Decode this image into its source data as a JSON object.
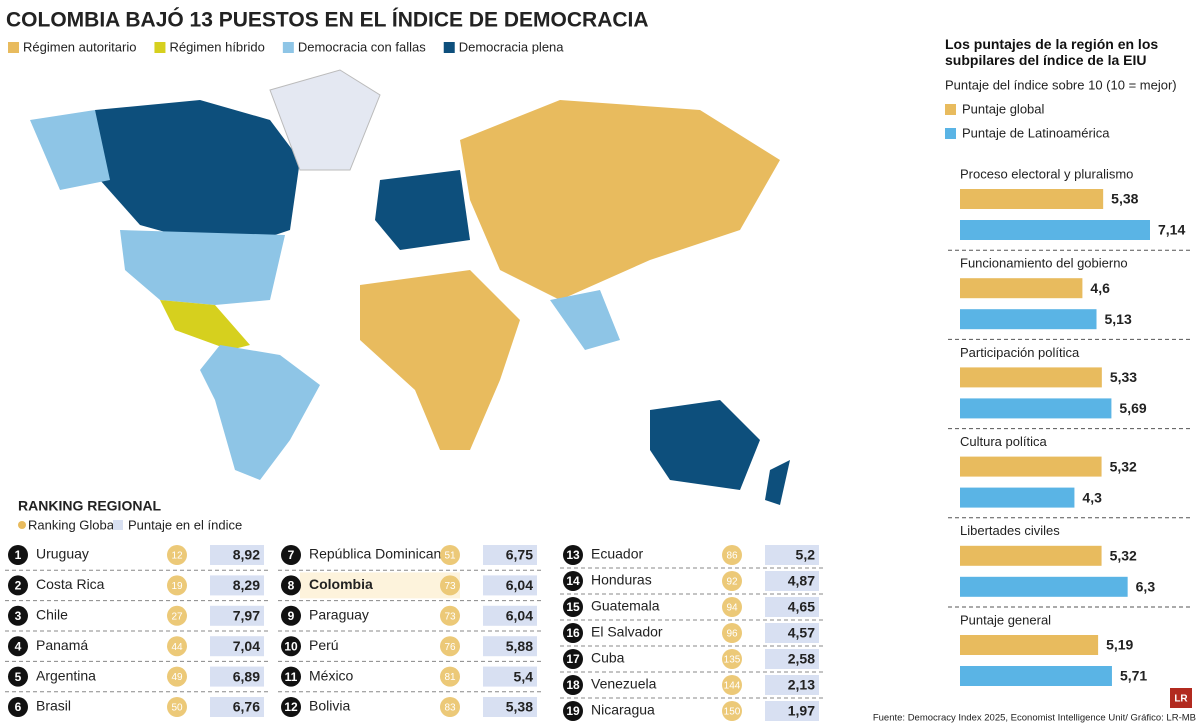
{
  "title": "COLOMBIA BAJÓ 13 PUESTOS EN EL ÍNDICE DE DEMOCRACIA",
  "map_legend": [
    {
      "label": "Régimen autoritario",
      "color": "#e8bb5e"
    },
    {
      "label": "Régimen híbrido",
      "color": "#d6d01e"
    },
    {
      "label": "Democracia con fallas",
      "color": "#8ec5e6"
    },
    {
      "label": "Democracia plena",
      "color": "#0d4f7c"
    }
  ],
  "ranking": {
    "title": "RANKING REGIONAL",
    "legend": [
      "Ranking Global",
      "Puntaje en el índice"
    ],
    "rows": [
      {
        "rank": "1",
        "country": "Uruguay",
        "global": "12",
        "score": "8,92"
      },
      {
        "rank": "2",
        "country": "Costa Rica",
        "global": "19",
        "score": "8,29"
      },
      {
        "rank": "3",
        "country": "Chile",
        "global": "27",
        "score": "7,97"
      },
      {
        "rank": "4",
        "country": "Panamá",
        "global": "44",
        "score": "7,04"
      },
      {
        "rank": "5",
        "country": "Argentina",
        "global": "49",
        "score": "6,89"
      },
      {
        "rank": "6",
        "country": "Brasil",
        "global": "50",
        "score": "6,76"
      },
      {
        "rank": "7",
        "country": "República Dominicana",
        "global": "51",
        "score": "6,75"
      },
      {
        "rank": "8",
        "country": "Colombia",
        "global": "73",
        "score": "6,04",
        "highlight": true
      },
      {
        "rank": "9",
        "country": "Paraguay",
        "global": "73",
        "score": "6,04"
      },
      {
        "rank": "10",
        "country": "Perú",
        "global": "76",
        "score": "5,88"
      },
      {
        "rank": "11",
        "country": "México",
        "global": "81",
        "score": "5,4"
      },
      {
        "rank": "12",
        "country": "Bolivia",
        "global": "83",
        "score": "5,38"
      },
      {
        "rank": "13",
        "country": "Ecuador",
        "global": "86",
        "score": "5,2"
      },
      {
        "rank": "14",
        "country": "Honduras",
        "global": "92",
        "score": "4,87"
      },
      {
        "rank": "15",
        "country": "Guatemala",
        "global": "94",
        "score": "4,65"
      },
      {
        "rank": "16",
        "country": "El Salvador",
        "global": "96",
        "score": "4,57"
      },
      {
        "rank": "17",
        "country": "Cuba",
        "global": "135",
        "score": "2,58"
      },
      {
        "rank": "18",
        "country": "Venezuela",
        "global": "144",
        "score": "2,13"
      },
      {
        "rank": "19",
        "country": "Nicaragua",
        "global": "150",
        "score": "1,97"
      }
    ]
  },
  "chart_data": {
    "type": "bar",
    "orientation": "horizontal",
    "title": "Los puntajes de la región en los subpilares del índice de la EIU",
    "subtitle": "Puntaje del índice sobre 10 (10 = mejor)",
    "categories": [
      "Proceso electoral y pluralismo",
      "Funcionamiento del gobierno",
      "Participación política",
      "Cultura política",
      "Libertades civiles",
      "Puntaje general"
    ],
    "series": [
      {
        "name": "Puntaje global",
        "color": "#e8bb5e",
        "values": [
          5.38,
          4.6,
          5.33,
          5.32,
          5.32,
          5.19
        ],
        "value_labels": [
          "5,38",
          "4,6",
          "5,33",
          "5,32",
          "5,32",
          "5,19"
        ]
      },
      {
        "name": "Puntaje de Latinoamérica",
        "color": "#5ab4e5",
        "values": [
          7.14,
          5.13,
          5.69,
          4.3,
          6.3,
          5.71
        ],
        "value_labels": [
          "7,14",
          "5,13",
          "5,69",
          "4,3",
          "6,3",
          "5,71"
        ]
      }
    ]
  },
  "source": "Fuente: Democracy Index 2025, Economist Intelligence Unit/ Gráfico: LR-MB",
  "logo": "LR"
}
